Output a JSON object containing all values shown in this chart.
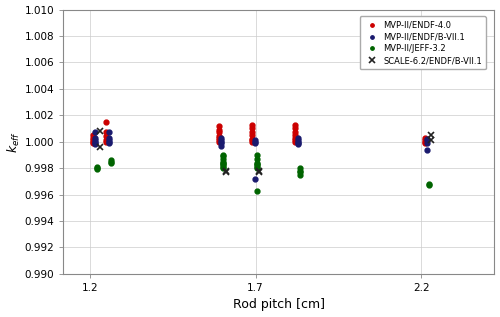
{
  "xlabel": "Rod pitch [cm]",
  "ylabel": "k_eff",
  "xlim": [
    1.12,
    2.42
  ],
  "ylim": [
    0.99,
    1.01
  ],
  "yticks": [
    0.99,
    0.992,
    0.994,
    0.996,
    0.998,
    1.0,
    1.002,
    1.004,
    1.006,
    1.008,
    1.01
  ],
  "xticks": [
    1.2,
    1.7,
    2.2
  ],
  "series": {
    "ENDF": {
      "color": "#cc0000",
      "label": "MVP-II/ENDF-4.0",
      "data": {
        "1.220": [
          1.0005,
          1.0003,
          1.0001,
          1.0,
          0.9999
        ],
        "1.260": [
          1.0015,
          1.0007,
          1.0004,
          1.0001,
          1.0
        ],
        "1.600": [
          1.0012,
          1.0009,
          1.0007,
          1.0004,
          1.0003,
          1.0001,
          1.0
        ],
        "1.700": [
          1.0013,
          1.001,
          1.0007,
          1.0005,
          1.0002,
          1.0001,
          1.0
        ],
        "1.830": [
          1.0013,
          1.001,
          1.0007,
          1.0005,
          1.0003,
          1.0001,
          1.0
        ],
        "2.220": [
          1.0003,
          1.0001,
          1.0,
          0.9999
        ]
      }
    },
    "ENDFB": {
      "color": "#1a1a6e",
      "label": "MVP-II/ENDF/B-VII.1",
      "data": {
        "1.220": [
          1.0007,
          1.0003,
          1.0001,
          1.0,
          0.9999,
          0.9998
        ],
        "1.260": [
          1.0007,
          1.0003,
          1.0001,
          1.0,
          0.9999
        ],
        "1.600": [
          1.0003,
          1.0001,
          1.0,
          0.9999,
          0.9997
        ],
        "1.700": [
          1.0001,
          1.0,
          0.9999,
          0.9972
        ],
        "1.830": [
          1.0003,
          1.0001,
          1.0,
          0.9999,
          0.9998
        ],
        "2.220": [
          1.0002,
          1.0001,
          0.9999,
          0.9994
        ]
      }
    },
    "JEFF": {
      "color": "#006400",
      "label": "MVP-II/JEFF-3.2",
      "data": {
        "1.220": [
          0.9981,
          0.998,
          0.9979
        ],
        "1.260": [
          0.9986,
          0.9985,
          0.9984
        ],
        "1.600": [
          0.999,
          0.9989,
          0.9987,
          0.9985,
          0.9984,
          0.9983,
          0.9982,
          0.9981,
          0.998
        ],
        "1.700": [
          0.999,
          0.9987,
          0.9984,
          0.9983,
          0.9982,
          0.9981,
          0.998,
          0.9963
        ],
        "1.830": [
          0.998,
          0.9978,
          0.9977,
          0.9975
        ],
        "2.220": [
          0.9968,
          0.9967
        ]
      }
    },
    "SCALE": {
      "color": "#222222",
      "label": "SCALE-6.2/ENDF/B-VII.1",
      "data": {
        "1.220": [
          1.0008,
          0.9996
        ],
        "1.600": [
          0.9978,
          0.9977
        ],
        "1.700": [
          0.9978,
          0.9977
        ],
        "2.220": [
          1.0005,
          1.0001
        ]
      }
    }
  }
}
